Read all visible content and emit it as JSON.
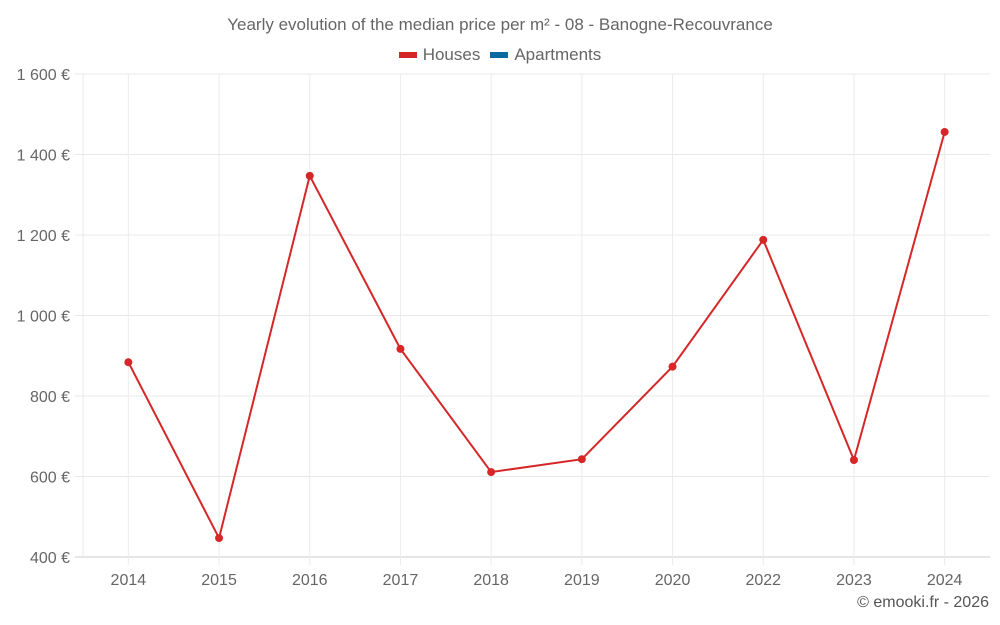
{
  "chart_data": {
    "type": "line",
    "title": "Yearly evolution of the median price per m² - 08 - Banogne-Recouvrance",
    "xlabel": "",
    "ylabel": "",
    "categories": [
      "2014",
      "2015",
      "2016",
      "2017",
      "2018",
      "2019",
      "2020",
      "2022",
      "2023",
      "2024"
    ],
    "series": [
      {
        "name": "Houses",
        "color": "#d62728",
        "values": [
          884,
          447,
          1347,
          917,
          611,
          643,
          873,
          1188,
          641,
          1456
        ]
      },
      {
        "name": "Apartments",
        "color": "#0b6aa2",
        "values": []
      }
    ],
    "ylim": [
      400,
      1600
    ],
    "yticks": [
      400,
      600,
      800,
      1000,
      1200,
      1400,
      1600
    ],
    "ytick_labels": [
      "400 €",
      "600 €",
      "800 €",
      "1 000 €",
      "1 200 €",
      "1 400 €",
      "1 600 €"
    ],
    "grid": true,
    "legend_position": "top"
  },
  "legend": [
    {
      "label": "Houses",
      "color": "#d62728"
    },
    {
      "label": "Apartments",
      "color": "#0b6aa2"
    }
  ],
  "credit": "© emooki.fr - 2026"
}
